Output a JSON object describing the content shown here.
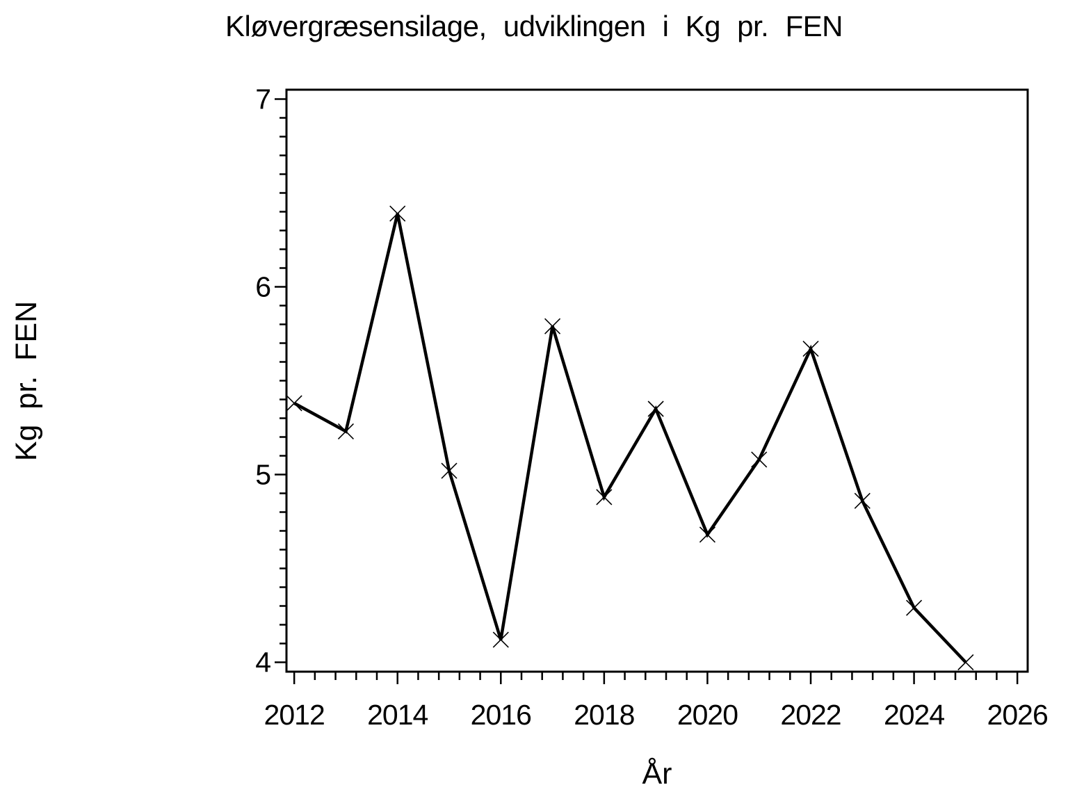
{
  "colors": {
    "foreground": "#000000",
    "background": "#ffffff"
  },
  "chart_data": {
    "type": "line",
    "title": "Kløvergræsensilage, udviklingen i Kg pr. FEN",
    "xlabel": "År",
    "ylabel": "Kg pr. FEN",
    "series": [
      {
        "name": "Kg pr. FEN",
        "x": [
          2012,
          2013,
          2014,
          2015,
          2016,
          2017,
          2018,
          2019,
          2020,
          2021,
          2022,
          2023,
          2024,
          2025
        ],
        "values": [
          5.38,
          5.23,
          6.39,
          5.02,
          4.12,
          5.79,
          4.88,
          5.35,
          4.68,
          5.08,
          5.67,
          4.86,
          4.29,
          4.0
        ]
      }
    ],
    "xlim": [
      2011.85,
      2026.2
    ],
    "ylim": [
      3.95,
      7.05
    ],
    "xticks": [
      2012,
      2014,
      2016,
      2018,
      2020,
      2022,
      2024,
      2026
    ],
    "yticks": [
      4,
      5,
      6,
      7
    ],
    "x_minor_step": 0.4,
    "y_minor_step": 0.1,
    "marker": "x",
    "grid": false,
    "legend": false,
    "line_color": "#000000",
    "marker_color": "#000000"
  }
}
